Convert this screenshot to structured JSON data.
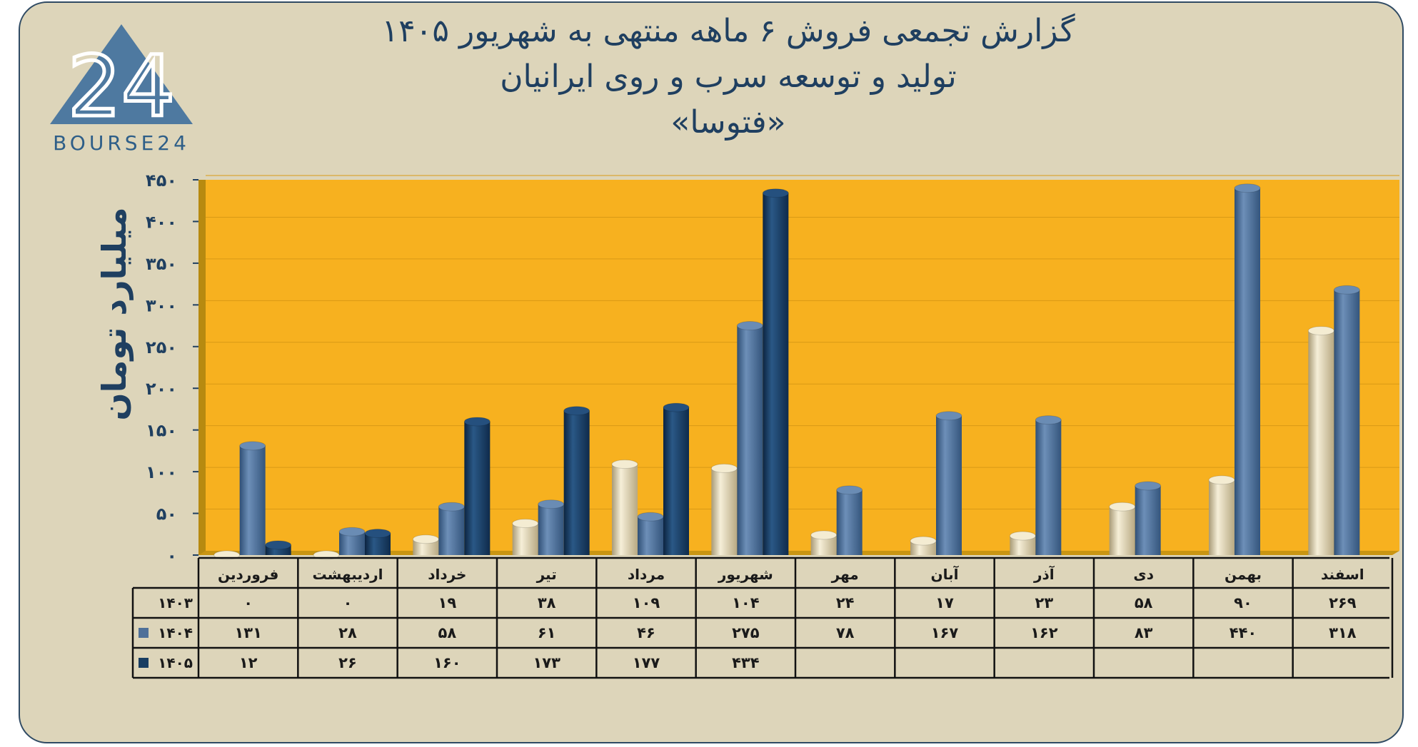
{
  "title": {
    "line1": "گزارش تجمعی فروش ۶ ماهه منتهی به شهریور ۱۴۰۵",
    "line2": "تولید و توسعه سرب و روی ایرانیان",
    "line3": "«فتوسا»"
  },
  "logo": {
    "text": "BOURSE24",
    "mark": "24"
  },
  "colors": {
    "background": "#ddd5ba",
    "plot_area": "#f7b11f",
    "series_1403": "#e8dfc4",
    "series_1404": "#4f7099",
    "series_1405": "#183d62",
    "text": "#1f3f60"
  },
  "chart_data": {
    "type": "bar",
    "ylabel": "میلیارد تومان",
    "ylim": [
      0,
      450
    ],
    "yticks": [
      0,
      50,
      100,
      150,
      200,
      250,
      300,
      350,
      400,
      450
    ],
    "ytick_labels": [
      "۰",
      "۵۰",
      "۱۰۰",
      "۱۵۰",
      "۲۰۰",
      "۲۵۰",
      "۳۰۰",
      "۳۵۰",
      "۴۰۰",
      "۴۵۰"
    ],
    "categories": [
      "فروردین",
      "اردیبهشت",
      "خرداد",
      "تیر",
      "مرداد",
      "شهریور",
      "مهر",
      "آبان",
      "آذر",
      "دی",
      "بهمن",
      "اسفند"
    ],
    "series": [
      {
        "name": "۱۴۰۳",
        "values": [
          0,
          0,
          19,
          38,
          109,
          104,
          24,
          17,
          23,
          58,
          90,
          269
        ],
        "labels": [
          "۰",
          "۰",
          "۱۹",
          "۳۸",
          "۱۰۹",
          "۱۰۴",
          "۲۴",
          "۱۷",
          "۲۳",
          "۵۸",
          "۹۰",
          "۲۶۹"
        ]
      },
      {
        "name": "۱۴۰۴",
        "values": [
          131,
          28,
          58,
          61,
          46,
          275,
          78,
          167,
          162,
          83,
          440,
          318
        ],
        "labels": [
          "۱۳۱",
          "۲۸",
          "۵۸",
          "۶۱",
          "۴۶",
          "۲۷۵",
          "۷۸",
          "۱۶۷",
          "۱۶۲",
          "۸۳",
          "۴۴۰",
          "۳۱۸"
        ]
      },
      {
        "name": "۱۴۰۵",
        "values": [
          12,
          26,
          160,
          173,
          177,
          434,
          null,
          null,
          null,
          null,
          null,
          null
        ],
        "labels": [
          "۱۲",
          "۲۶",
          "۱۶۰",
          "۱۷۳",
          "۱۷۷",
          "۴۳۴",
          "",
          "",
          "",
          "",
          "",
          ""
        ]
      }
    ],
    "grid": true,
    "legend": "data-table"
  }
}
